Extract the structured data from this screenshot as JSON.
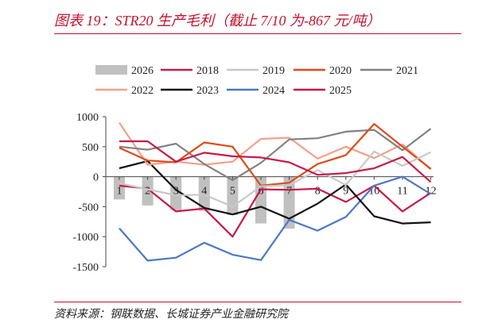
{
  "header": {
    "title": "图表 19：STR20 生产毛利（截止 7/10 为-867 元/吨）"
  },
  "footer": {
    "source": "资料来源：钢联数据、长城证券产业金融研究院"
  },
  "chart_data": {
    "type": "line",
    "title": "图表 19：STR20 生产毛利（截止 7/10 为-867 元/吨）",
    "xlabel": "",
    "ylabel": "",
    "x": [
      1,
      2,
      3,
      4,
      5,
      6,
      7,
      8,
      9,
      10,
      11,
      12
    ],
    "ylim": [
      -1500,
      1000
    ],
    "yticks": [
      1000,
      500,
      0,
      -500,
      -1000,
      -1500
    ],
    "legend_position": "top",
    "grid": false,
    "series": [
      {
        "name": "2026",
        "kind": "bar",
        "color": "#c0c0c0",
        "values": [
          -380,
          -480,
          -560,
          -570,
          -640,
          -780,
          -867,
          null,
          null,
          null,
          null,
          null
        ]
      },
      {
        "name": "2018",
        "kind": "line",
        "color": "#c41c4a",
        "values": [
          590,
          590,
          250,
          400,
          340,
          320,
          240,
          30,
          60,
          140,
          330,
          -90
        ]
      },
      {
        "name": "2019",
        "kind": "line",
        "color": "#c8c8c8",
        "values": [
          -110,
          -210,
          -310,
          -300,
          -500,
          -160,
          -140,
          110,
          -140,
          420,
          180,
          410
        ]
      },
      {
        "name": "2020",
        "kind": "line",
        "color": "#e04a1a",
        "values": [
          480,
          270,
          240,
          570,
          500,
          -150,
          -100,
          210,
          360,
          880,
          500,
          130
        ]
      },
      {
        "name": "2021",
        "kind": "line",
        "color": "#828282",
        "values": [
          500,
          450,
          550,
          210,
          -60,
          230,
          620,
          640,
          750,
          780,
          440,
          800
        ]
      },
      {
        "name": "2022",
        "kind": "line",
        "color": "#f4a08a",
        "values": [
          900,
          200,
          250,
          200,
          250,
          630,
          650,
          300,
          500,
          310,
          540,
          120
        ]
      },
      {
        "name": "2023",
        "kind": "line",
        "color": "#111111",
        "values": [
          140,
          260,
          -220,
          -520,
          -630,
          -500,
          -700,
          -450,
          -130,
          -660,
          -780,
          -760
        ]
      },
      {
        "name": "2024",
        "kind": "line",
        "color": "#4a78c4",
        "values": [
          -860,
          -1400,
          -1350,
          -1100,
          -1300,
          -1390,
          -720,
          -900,
          -670,
          -150,
          0,
          -290
        ]
      },
      {
        "name": "2025",
        "kind": "line",
        "color": "#c8184a",
        "values": [
          -150,
          -200,
          -580,
          -530,
          -1000,
          -210,
          -220,
          -200,
          -420,
          -150,
          -580,
          -270
        ]
      }
    ]
  }
}
